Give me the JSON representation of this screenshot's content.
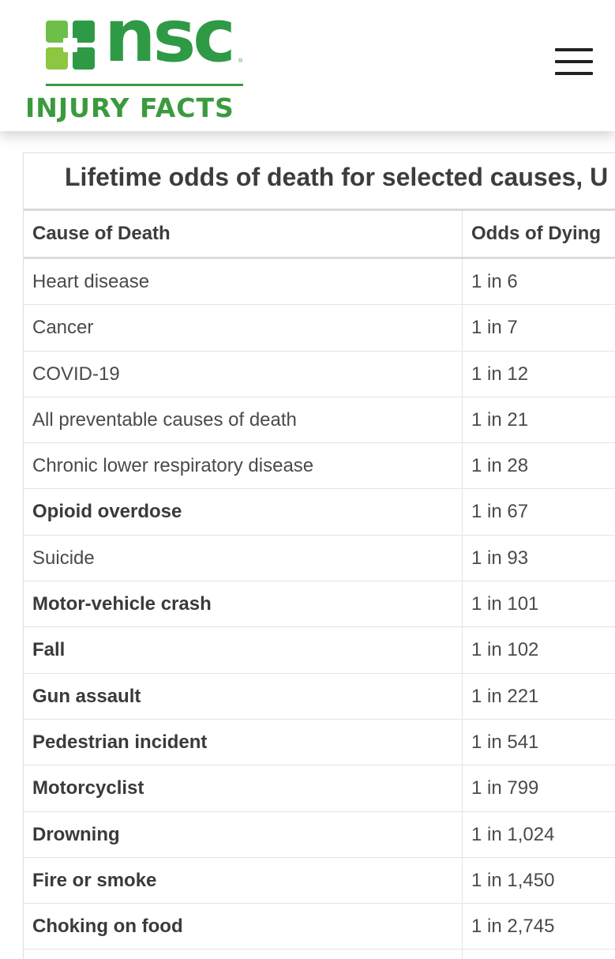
{
  "header": {
    "logo": {
      "wordmark": "nsc",
      "tagline": "INJURY FACTS",
      "colors": {
        "dark_green": "#2e9a45",
        "light_green": "#8dc63f",
        "tagline_green": "#3b9a3e"
      }
    },
    "menu_icon": "hamburger-icon"
  },
  "table": {
    "title": "Lifetime odds of death for selected causes, U",
    "columns": {
      "cause": "Cause of Death",
      "odds": "Odds of Dying"
    },
    "rows": [
      {
        "cause": "Heart disease",
        "odds": "1 in 6",
        "bold": false
      },
      {
        "cause": "Cancer",
        "odds": "1 in 7",
        "bold": false
      },
      {
        "cause": "COVID-19",
        "odds": "1 in 12",
        "bold": false
      },
      {
        "cause": "All preventable causes of death",
        "odds": "1 in 21",
        "bold": false
      },
      {
        "cause": "Chronic lower respiratory disease",
        "odds": "1 in 28",
        "bold": false
      },
      {
        "cause": "Opioid overdose",
        "odds": "1 in 67",
        "bold": true
      },
      {
        "cause": "Suicide",
        "odds": "1 in 93",
        "bold": false
      },
      {
        "cause": "Motor-vehicle crash",
        "odds": "1 in 101",
        "bold": true
      },
      {
        "cause": "Fall",
        "odds": "1 in 102",
        "bold": true
      },
      {
        "cause": "Gun assault",
        "odds": "1 in 221",
        "bold": true
      },
      {
        "cause": "Pedestrian incident",
        "odds": "1 in 541",
        "bold": true
      },
      {
        "cause": "Motorcyclist",
        "odds": "1 in 799",
        "bold": true
      },
      {
        "cause": "Drowning",
        "odds": "1 in 1,024",
        "bold": true
      },
      {
        "cause": "Fire or smoke",
        "odds": "1 in 1,450",
        "bold": true
      },
      {
        "cause": "Choking on food",
        "odds": "1 in 2,745",
        "bold": true
      }
    ]
  }
}
